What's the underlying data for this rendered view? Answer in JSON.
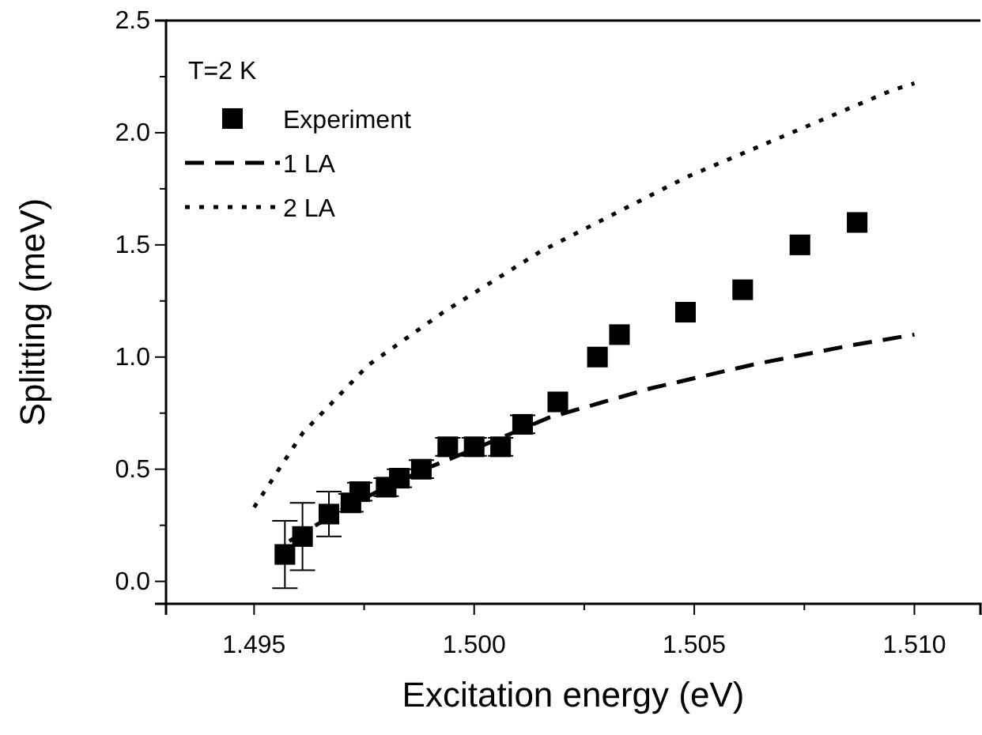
{
  "chart_data": {
    "type": "scatter",
    "xlabel": "Excitation energy (eV)",
    "ylabel": "Splitting (meV)",
    "legend_title": "T=2 K",
    "legend": "top left",
    "grid": false,
    "xlim": [
      1.493,
      1.5115
    ],
    "xticks": [
      1.495,
      {
        "value": 1.5,
        "label": "1.500"
      },
      1.505,
      {
        "value": 1.51,
        "label": "1.510"
      },
      {
        "value": 1.4975,
        "label": null
      },
      {
        "value": 1.5025,
        "label": null
      },
      {
        "value": 1.5075,
        "label": null
      }
    ],
    "ylim": [
      -0.1,
      2.5
    ],
    "yticks": [
      {
        "value": 0,
        "label": "0.0"
      },
      0.5,
      {
        "value": 1,
        "label": "1.0"
      },
      1.5,
      {
        "value": 2,
        "label": "2.0"
      },
      2.5,
      {
        "value": 0.25,
        "label": null
      },
      {
        "value": 0.75,
        "label": null
      },
      {
        "value": 1.25,
        "label": null
      },
      {
        "value": 1.75,
        "label": null
      },
      {
        "value": 2.25,
        "label": null
      }
    ],
    "series": [
      {
        "name": "Experiment",
        "marker": "square",
        "color": "#000000",
        "x": [
          1.4957,
          1.4961,
          1.4967,
          1.4972,
          1.4974,
          1.498,
          1.4983,
          1.4988,
          1.4994,
          1.5,
          1.5006,
          1.5011,
          1.5019,
          1.5028,
          1.5033,
          1.5048,
          1.5061,
          1.5074,
          1.5087
        ],
        "values": [
          0.12,
          0.2,
          0.3,
          0.35,
          0.4,
          0.42,
          0.46,
          0.5,
          0.6,
          0.6,
          0.6,
          0.7,
          0.8,
          1.0,
          1.1,
          1.2,
          1.3,
          1.5,
          1.6
        ],
        "errors": [
          0.15,
          0.15,
          0.1,
          0.04,
          0.04,
          0.04,
          0.04,
          0.04,
          0.04,
          0.04,
          0.04,
          0.04,
          null,
          null,
          null,
          null,
          null,
          null,
          null
        ]
      },
      {
        "name": "1 LA",
        "type": "line",
        "line_style": "dashed",
        "marker": "none",
        "color": "#000000",
        "x": [
          1.4958,
          1.497,
          1.498,
          1.499,
          1.5,
          1.5017,
          1.504,
          1.5063,
          1.5085,
          1.51
        ],
        "values": [
          0.18,
          0.32,
          0.42,
          0.51,
          0.59,
          0.73,
          0.86,
          0.965,
          1.05,
          1.1
        ]
      },
      {
        "name": "2 LA",
        "type": "line",
        "line_style": "dotted",
        "marker": "none",
        "color": "#000000",
        "x": [
          1.495,
          1.4961,
          1.4976,
          1.4993,
          1.5015,
          1.5048,
          1.5095,
          1.51
        ],
        "values": [
          0.33,
          0.66,
          0.965,
          1.2,
          1.47,
          1.8,
          2.19,
          2.22
        ]
      }
    ]
  }
}
